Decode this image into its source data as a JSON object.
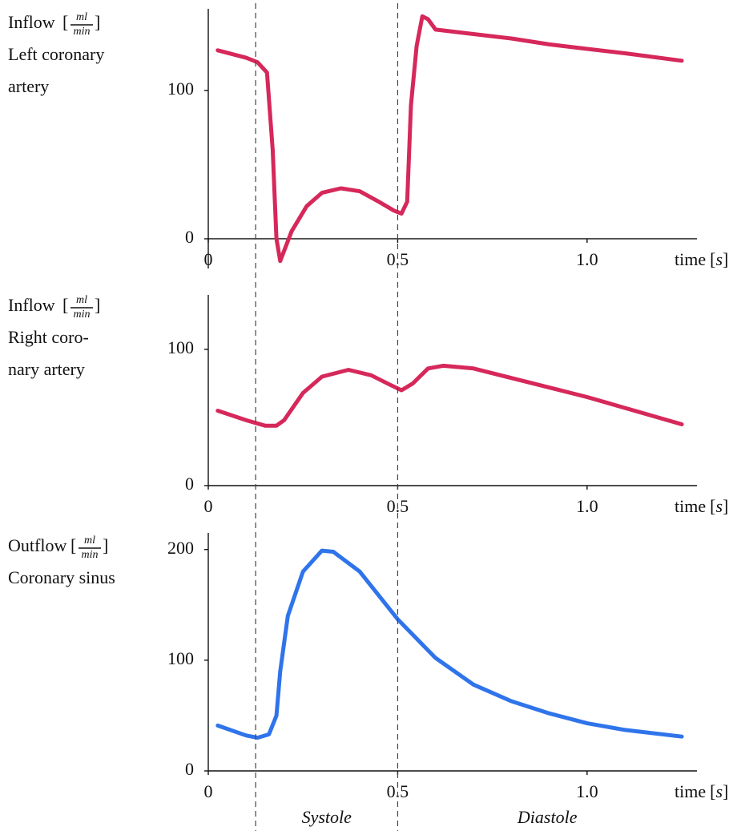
{
  "chart_data": [
    {
      "type": "line",
      "ylabel_lines": [
        "Inflow",
        "Left coronary",
        "artery"
      ],
      "unit_num": "ml",
      "unit_den": "min",
      "xlabel": "time",
      "xunit": "s",
      "x": [
        0.025,
        0.1,
        0.13,
        0.155,
        0.17,
        0.18,
        0.19,
        0.22,
        0.26,
        0.3,
        0.35,
        0.4,
        0.45,
        0.49,
        0.51,
        0.525,
        0.535,
        0.55,
        0.565,
        0.58,
        0.6,
        0.7,
        0.8,
        0.9,
        1.0,
        1.1,
        1.25
      ],
      "values": [
        127,
        122,
        119,
        112,
        60,
        0,
        -15,
        5,
        22,
        31,
        34,
        32,
        25,
        19,
        17,
        25,
        90,
        130,
        150,
        148,
        141,
        138,
        135,
        131,
        128,
        125,
        120
      ],
      "color": "#d6285a",
      "xlim": [
        0,
        1.29
      ],
      "ylim": [
        -20,
        155
      ],
      "xticks": [
        0,
        0.5,
        {
          "value": 1,
          "label": "1.0"
        }
      ],
      "yticks": [
        0,
        100
      ]
    },
    {
      "type": "line",
      "ylabel_lines": [
        "Inflow",
        "Right coro-",
        "nary artery"
      ],
      "unit_num": "ml",
      "unit_den": "min",
      "xlabel": "time",
      "xunit": "s",
      "x": [
        0.025,
        0.1,
        0.15,
        0.18,
        0.2,
        0.25,
        0.3,
        0.37,
        0.43,
        0.48,
        0.51,
        0.54,
        0.58,
        0.62,
        0.7,
        0.8,
        0.9,
        1.0,
        1.1,
        1.25
      ],
      "values": [
        55,
        48,
        44,
        44,
        48,
        68,
        80,
        85,
        81,
        74,
        70,
        75,
        86,
        88,
        86,
        79,
        72,
        65,
        57,
        45
      ],
      "color": "#d6285a",
      "xlim": [
        0,
        1.29
      ],
      "ylim": [
        0,
        140
      ],
      "xticks": [
        0,
        0.5,
        {
          "value": 1,
          "label": "1.0"
        }
      ],
      "yticks": [
        0,
        100
      ]
    },
    {
      "type": "line",
      "ylabel_lines": [
        "Outflow",
        "Coronary sinus"
      ],
      "unit_num": "ml",
      "unit_den": "min",
      "xlabel": "time",
      "xunit": "s",
      "x": [
        0.025,
        0.1,
        0.13,
        0.16,
        0.18,
        0.19,
        0.21,
        0.25,
        0.3,
        0.33,
        0.4,
        0.5,
        0.6,
        0.7,
        0.8,
        0.9,
        1.0,
        1.1,
        1.25
      ],
      "values": [
        41,
        32,
        30,
        33,
        50,
        90,
        140,
        180,
        199,
        198,
        180,
        137,
        102,
        78,
        63,
        52,
        43,
        37,
        31
      ],
      "color": "#2f74ea",
      "xlim": [
        0,
        1.29
      ],
      "ylim": [
        0,
        215
      ],
      "xticks": [
        0,
        0.5,
        {
          "value": 1,
          "label": "1.0"
        }
      ],
      "yticks": [
        0,
        100,
        200
      ]
    }
  ],
  "phase_lines": [
    0.125,
    0.5
  ],
  "phases": [
    "Systole",
    "Diastole"
  ]
}
